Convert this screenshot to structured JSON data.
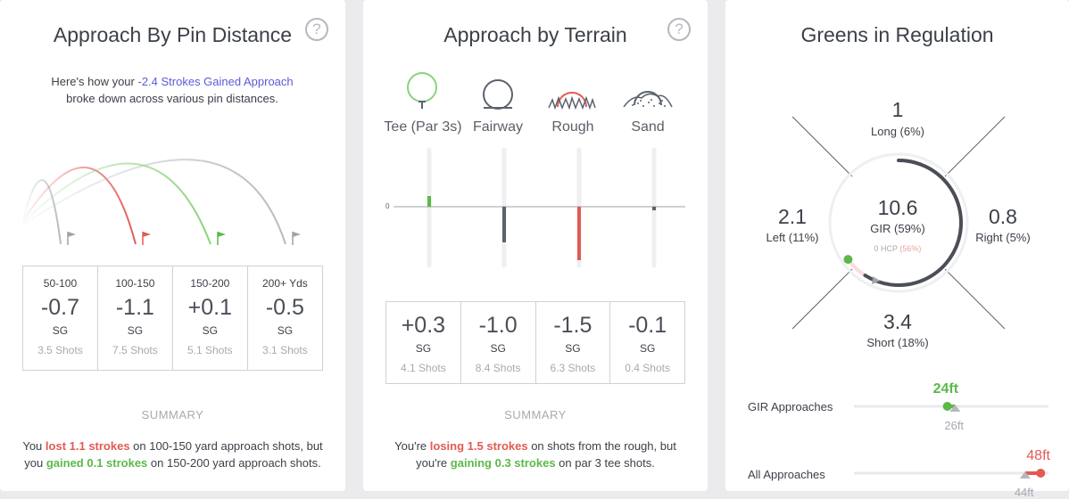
{
  "pin": {
    "title": "Approach By Pin Distance",
    "help": "?",
    "intro_pre": "Here's how your ",
    "intro_link": "-2.4 Strokes Gained Approach",
    "intro_post": " broke down across various pin distances.",
    "columns": [
      {
        "head": "50-100",
        "value": "-0.7",
        "sg": "SG",
        "shots": "3.5 Shots",
        "tone": "neutral"
      },
      {
        "head": "100-150",
        "value": "-1.1",
        "sg": "SG",
        "shots": "7.5 Shots",
        "tone": "negative"
      },
      {
        "head": "150-200",
        "value": "+0.1",
        "sg": "SG",
        "shots": "5.1 Shots",
        "tone": "positive"
      },
      {
        "head": "200+ Yds",
        "value": "-0.5",
        "sg": "SG",
        "shots": "3.1 Shots",
        "tone": "neutral"
      }
    ],
    "summary_heading": "SUMMARY",
    "summary": {
      "s1": "You ",
      "s2": "lost 1.1 strokes",
      "s3": " on 100-150 yard approach shots, but you ",
      "s4": "gained 0.1 strokes",
      "s5": " on 150-200 yard approach shots."
    }
  },
  "terrain": {
    "title": "Approach by Terrain",
    "help": "?",
    "zero_label": "0",
    "labels": [
      "Tee (Par 3s)",
      "Fairway",
      "Rough",
      "Sand"
    ],
    "icons": [
      "tee-icon",
      "fairway-icon",
      "rough-icon",
      "sand-icon"
    ],
    "columns": [
      {
        "value": "+0.3",
        "sg": "SG",
        "shots": "4.1 Shots",
        "tone": "positive"
      },
      {
        "value": "-1.0",
        "sg": "SG",
        "shots": "8.4 Shots",
        "tone": "neutral"
      },
      {
        "value": "-1.5",
        "sg": "SG",
        "shots": "6.3 Shots",
        "tone": "negative"
      },
      {
        "value": "-0.1",
        "sg": "SG",
        "shots": "0.4 Shots",
        "tone": "neutral"
      }
    ],
    "summary_heading": "SUMMARY",
    "summary": {
      "s1": "You're ",
      "s2": "losing 1.5 strokes",
      "s3": " on shots from the rough, but you're ",
      "s4": "gaining 0.3 strokes",
      "s5": " on par 3 tee shots."
    }
  },
  "gir": {
    "title": "Greens in Regulation",
    "long": {
      "value": "1",
      "label": "Long (6%)"
    },
    "left": {
      "value": "2.1",
      "label": "Left (11%)"
    },
    "right": {
      "value": "0.8",
      "label": "Right (5%)"
    },
    "short": {
      "value": "3.4",
      "label": "Short (18%)"
    },
    "center": {
      "value": "10.6",
      "label": "GIR (59%)",
      "hcp_label": "0 HCP",
      "hcp_pct": "(56%)"
    },
    "gir_fraction": 0.59,
    "hcp_fraction": 0.56,
    "approaches": [
      {
        "label": "GIR Approaches",
        "value": "24ft",
        "benchmark": "26ft",
        "tone": "positive"
      },
      {
        "label": "All Approaches",
        "value": "48ft",
        "benchmark": "44ft",
        "tone": "negative"
      }
    ]
  },
  "colors": {
    "green": "#5bb94a",
    "red": "#e25a55",
    "gray": "#5c626d",
    "blue": "#5b5bd6",
    "muted": "#a7aab0"
  }
}
